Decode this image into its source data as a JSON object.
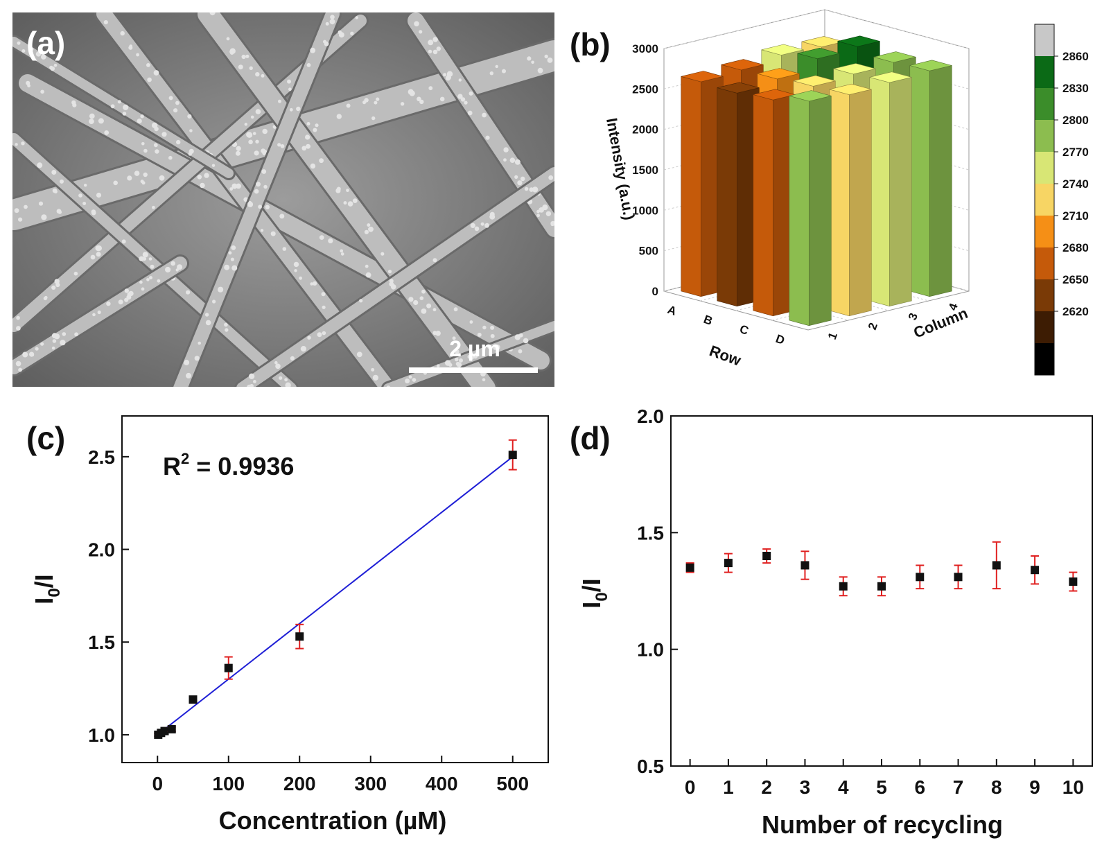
{
  "panels": {
    "a": {
      "label": "(a)",
      "scale_bar": "2 µm"
    },
    "b": {
      "label": "(b)"
    },
    "c": {
      "label": "(c)",
      "r2_label": "R",
      "r2_sup": "2",
      "r2_value": " = 0.9936"
    },
    "d": {
      "label": "(d)"
    }
  },
  "colors": {
    "marker": "#111111",
    "error_bar": "#e02020",
    "fit_line": "#1f1fd6",
    "sem_background": "#8a8a8a"
  },
  "chart_data": [
    {
      "id": "b",
      "type": "bar3d",
      "zlabel": "Intensity (a.u.)",
      "xlabel": "Row",
      "ylabel": "Column",
      "rows": [
        "A",
        "B",
        "C",
        "D"
      ],
      "columns": [
        "1",
        "2",
        "3",
        "4"
      ],
      "zlim": [
        0,
        3000
      ],
      "zticks": [
        0,
        500,
        1000,
        1500,
        2000,
        2500,
        3000
      ],
      "values": [
        [
          2655,
          2680,
          2745,
          2725
        ],
        [
          2635,
          2690,
          2820,
          2850
        ],
        [
          2670,
          2720,
          2750,
          2775
        ],
        [
          2775,
          2735,
          2765,
          2790
        ]
      ],
      "colorbar": {
        "ticks": [
          "2860",
          "2830",
          "2800",
          "2770",
          "2740",
          "2710",
          "2680",
          "2650",
          "2620"
        ],
        "colors": [
          "#c8c8c8",
          "#0b6a16",
          "#3b8d2a",
          "#8cbd4f",
          "#d8e675",
          "#f7d564",
          "#f58f16",
          "#c55a0a",
          "#7a3a06",
          "#3d1c03",
          "#000000"
        ]
      }
    },
    {
      "id": "c",
      "type": "scatter",
      "xlabel": "Concentration (µM)",
      "ylabel": "I0/I",
      "xlim": [
        -50,
        550
      ],
      "ylim": [
        0.85,
        2.72
      ],
      "xticks": [
        0,
        100,
        200,
        300,
        400,
        500
      ],
      "yticks": [
        1.0,
        1.5,
        2.0,
        2.5
      ],
      "x": [
        1,
        5,
        10,
        20,
        50,
        100,
        200,
        500
      ],
      "y": [
        1.0,
        1.01,
        1.02,
        1.03,
        1.19,
        1.36,
        1.53,
        2.51
      ],
      "yerr": [
        0.008,
        0.008,
        0.01,
        0.012,
        0.015,
        0.06,
        0.065,
        0.08
      ],
      "fit": {
        "x": [
          10,
          500
        ],
        "y": [
          1.03,
          2.5
        ]
      },
      "r2": 0.9936
    },
    {
      "id": "d",
      "type": "scatter",
      "xlabel": "Number of recycling",
      "ylabel": "I0/I",
      "xlim": [
        -0.5,
        10.5
      ],
      "ylim": [
        0.5,
        2.0
      ],
      "xticks": [
        0,
        1,
        2,
        3,
        4,
        5,
        6,
        7,
        8,
        9,
        10
      ],
      "yticks": [
        0.5,
        1.0,
        1.5,
        2.0
      ],
      "x": [
        0,
        1,
        2,
        3,
        4,
        5,
        6,
        7,
        8,
        9,
        10
      ],
      "y": [
        1.35,
        1.37,
        1.4,
        1.36,
        1.27,
        1.27,
        1.31,
        1.31,
        1.36,
        1.34,
        1.29
      ],
      "yerr": [
        0.02,
        0.04,
        0.03,
        0.06,
        0.04,
        0.04,
        0.05,
        0.05,
        0.1,
        0.06,
        0.04
      ]
    }
  ]
}
